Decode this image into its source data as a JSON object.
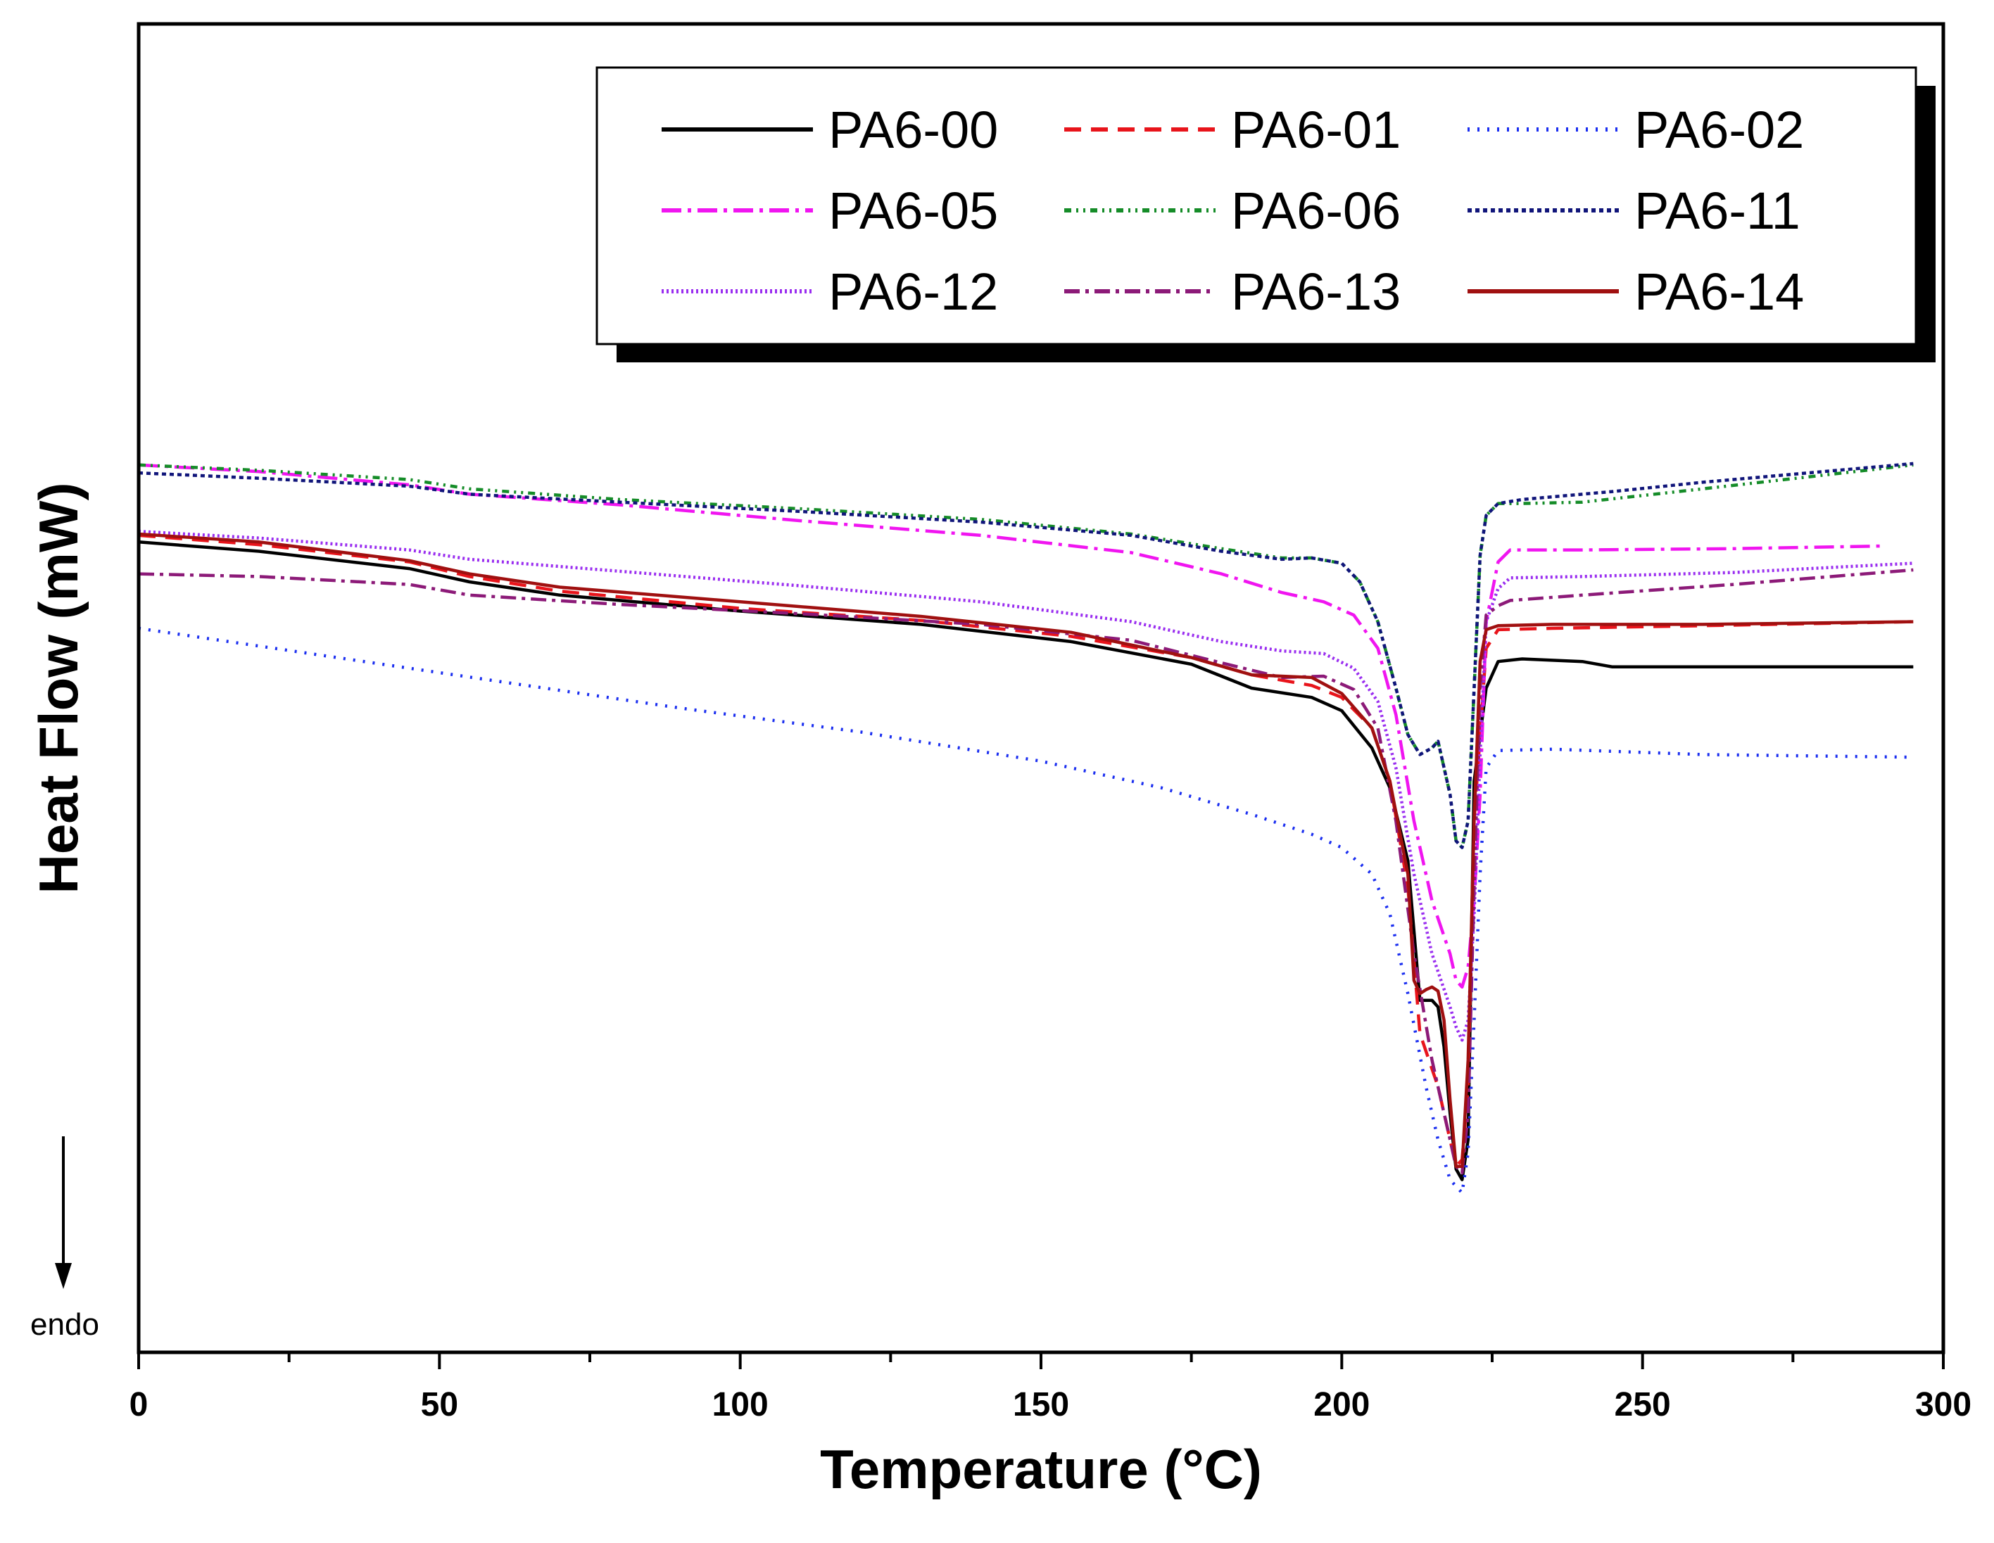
{
  "chart_data": {
    "type": "line",
    "title": "",
    "xlabel": "Temperature (°C)",
    "ylabel": "Heat Flow (mW)",
    "xlim": [
      0,
      300
    ],
    "ylim": [
      0,
      100
    ],
    "x_ticks": [
      0,
      50,
      100,
      150,
      200,
      250,
      300
    ],
    "x_tick_labels": [
      "0",
      "50",
      "100",
      "150",
      "200",
      "250",
      "300"
    ],
    "direction_label": "endo",
    "legend_position": "top-right",
    "y_units": "relative (no tick labels shown)",
    "series": [
      {
        "name": "PA6-00",
        "color": "#000000",
        "dash": "solid",
        "x": [
          0,
          20,
          45,
          55,
          70,
          100,
          130,
          155,
          175,
          185,
          195,
          200,
          205,
          208,
          211,
          213,
          215,
          216,
          217,
          218,
          219,
          220,
          221,
          222,
          224,
          226,
          230,
          240,
          245,
          250,
          270,
          295
        ],
        "y": [
          61.0,
          60.3,
          59.0,
          58.0,
          57.0,
          55.8,
          54.8,
          53.5,
          51.8,
          50.0,
          49.3,
          48.3,
          45.5,
          42.5,
          37.0,
          26.5,
          26.5,
          26.0,
          23.0,
          18.0,
          13.8,
          13.0,
          16.0,
          43.0,
          50.0,
          52.0,
          52.2,
          52.0,
          51.6,
          51.6,
          51.6,
          51.6
        ]
      },
      {
        "name": "PA6-01",
        "color": "#e8141b",
        "dash": "24,14",
        "x": [
          0,
          20,
          45,
          55,
          70,
          100,
          130,
          155,
          175,
          185,
          195,
          200,
          205,
          208,
          211,
          213,
          216,
          218,
          219,
          220,
          221,
          222,
          224,
          226,
          235,
          260,
          295
        ],
        "y": [
          61.5,
          60.8,
          59.5,
          58.4,
          57.3,
          56.0,
          55.1,
          53.9,
          52.3,
          51.0,
          50.2,
          49.3,
          47.0,
          43.0,
          35.0,
          24.0,
          20.0,
          16.0,
          14.0,
          14.5,
          20.0,
          40.0,
          53.0,
          54.4,
          54.5,
          54.7,
          55.0
        ]
      },
      {
        "name": "PA6-02",
        "color": "#1a2ef0",
        "dash": "3,11",
        "x": [
          0,
          30,
          60,
          90,
          120,
          150,
          170,
          185,
          195,
          200,
          205,
          208,
          211,
          214,
          216,
          218,
          219,
          220,
          221,
          222,
          223,
          224,
          226,
          235,
          260,
          295
        ],
        "y": [
          54.5,
          52.5,
          50.5,
          48.5,
          46.7,
          44.5,
          42.5,
          40.5,
          39.0,
          38.0,
          36.0,
          33.0,
          27.0,
          20.0,
          16.0,
          13.0,
          12.5,
          12.0,
          15.0,
          25.0,
          36.0,
          44.0,
          45.3,
          45.4,
          45.0,
          44.8
        ]
      },
      {
        "name": "PA6-05",
        "color": "#f015f0",
        "dash": "28,9,5,9",
        "x": [
          0,
          20,
          45,
          55,
          80,
          110,
          140,
          165,
          180,
          190,
          197,
          202,
          206,
          209,
          212,
          215,
          218,
          219,
          220,
          221,
          222,
          223,
          224,
          226,
          228,
          240,
          265,
          290
        ],
        "y": [
          66.8,
          66.3,
          65.3,
          64.6,
          63.8,
          62.6,
          61.5,
          60.2,
          58.6,
          57.2,
          56.5,
          55.5,
          53.0,
          48.0,
          40.0,
          34.0,
          30.0,
          28.0,
          27.5,
          29.0,
          34.0,
          42.0,
          55.0,
          59.5,
          60.4,
          60.4,
          60.5,
          60.7
        ]
      },
      {
        "name": "PA6-06",
        "color": "#158c28",
        "dash": "10,7,3,7,3,7",
        "x": [
          0,
          20,
          45,
          55,
          80,
          110,
          140,
          165,
          180,
          190,
          195,
          200,
          203,
          206,
          209,
          211,
          213,
          215,
          216,
          218,
          219,
          220,
          221,
          222,
          223,
          224,
          226,
          230,
          240,
          260,
          295
        ],
        "y": [
          66.8,
          66.4,
          65.7,
          65.0,
          64.2,
          63.5,
          62.7,
          61.6,
          60.5,
          59.8,
          59.8,
          59.4,
          58.0,
          55.0,
          50.0,
          46.5,
          45.0,
          45.5,
          46.0,
          42.0,
          38.5,
          38.0,
          40.0,
          50.0,
          60.0,
          63.0,
          63.9,
          63.9,
          64.0,
          65.0,
          66.8
        ]
      },
      {
        "name": "PA6-11",
        "color": "#10157a",
        "dash": "6,5",
        "x": [
          0,
          20,
          45,
          55,
          80,
          110,
          140,
          165,
          180,
          190,
          195,
          200,
          203,
          206,
          209,
          211,
          213,
          215,
          216,
          218,
          219,
          220,
          221,
          222,
          223,
          224,
          226,
          230,
          245,
          260,
          295
        ],
        "y": [
          66.2,
          65.8,
          65.2,
          64.6,
          64.0,
          63.3,
          62.5,
          61.5,
          60.3,
          59.7,
          59.8,
          59.4,
          58.0,
          55.0,
          50.0,
          46.5,
          45.0,
          45.5,
          46.0,
          42.0,
          38.5,
          38.0,
          40.0,
          50.0,
          60.0,
          63.0,
          63.9,
          64.2,
          64.8,
          65.5,
          66.9
        ]
      },
      {
        "name": "PA6-12",
        "color": "#9a2ef0",
        "dash": "3,4",
        "x": [
          0,
          20,
          45,
          55,
          80,
          110,
          140,
          165,
          180,
          190,
          197,
          202,
          206,
          209,
          212,
          215,
          218,
          219,
          220,
          221,
          222,
          223,
          224,
          226,
          228,
          240,
          265,
          295
        ],
        "y": [
          61.8,
          61.3,
          60.4,
          59.7,
          58.8,
          57.7,
          56.5,
          55.0,
          53.5,
          52.8,
          52.6,
          51.5,
          49.0,
          44.0,
          36.0,
          30.0,
          26.0,
          24.5,
          23.5,
          25.0,
          33.0,
          45.0,
          55.0,
          57.5,
          58.3,
          58.4,
          58.7,
          59.4
        ]
      },
      {
        "name": "PA6-13",
        "color": "#8c1a78",
        "dash": "22,8,5,8",
        "x": [
          0,
          20,
          45,
          55,
          80,
          110,
          140,
          165,
          180,
          190,
          197,
          202,
          206,
          209,
          212,
          215,
          218,
          219,
          220,
          221,
          222,
          223,
          224,
          226,
          228,
          240,
          265,
          295
        ],
        "y": [
          58.6,
          58.4,
          57.8,
          57.0,
          56.3,
          55.6,
          54.8,
          53.6,
          51.9,
          50.8,
          50.9,
          49.9,
          47.0,
          40.0,
          30.0,
          22.0,
          16.0,
          14.0,
          13.5,
          18.0,
          35.0,
          50.0,
          55.5,
          56.2,
          56.6,
          57.0,
          57.8,
          58.9
        ]
      },
      {
        "name": "PA6-14",
        "color": "#a01010",
        "dash": "solid",
        "x": [
          0,
          20,
          45,
          55,
          70,
          100,
          130,
          155,
          175,
          185,
          195,
          200,
          205,
          208,
          211,
          212,
          213,
          214,
          215,
          216,
          217,
          218,
          219,
          220,
          221,
          222,
          223,
          224,
          226,
          235,
          260,
          295
        ],
        "y": [
          61.6,
          61.0,
          59.6,
          58.6,
          57.6,
          56.5,
          55.4,
          54.2,
          52.3,
          51.0,
          50.8,
          49.6,
          47.0,
          43.0,
          36.0,
          28.0,
          27.0,
          27.3,
          27.5,
          27.2,
          25.0,
          19.0,
          14.0,
          14.0,
          22.0,
          40.0,
          52.0,
          54.4,
          54.7,
          54.8,
          54.8,
          55.0
        ]
      }
    ]
  }
}
